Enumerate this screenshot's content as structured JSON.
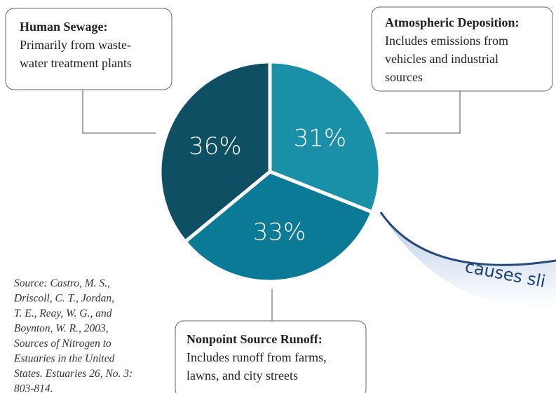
{
  "chart_data": {
    "type": "pie",
    "values": [
      31,
      33,
      36
    ],
    "value_labels": [
      "31%",
      "33%",
      "36%"
    ],
    "colors": [
      "#1a8fa8",
      "#0b7a96",
      "#0f4f64"
    ],
    "annotations": [
      {
        "title": "Atmospheric Deposition:",
        "lines": [
          "Includes emissions from",
          "vehicles and industrial",
          "sources"
        ]
      },
      {
        "title": "Nonpoint Source Runoff:",
        "lines": [
          "Includes runoff from farms,",
          "lawns, and city streets"
        ]
      },
      {
        "title": "Human Sewage:",
        "lines": [
          "Primarily from waste-",
          "water treatment plants"
        ]
      }
    ],
    "source": [
      "Source: Castro, M. S.,",
      "Driscoll, C. T., Jordan,",
      "T. E., Reay, W. G., and",
      "Boynton, W. R., 2003,",
      "Sources of Nitrogen to",
      "Estuaries in the United",
      "States. Estuaries 26, No. 3:",
      "803-814."
    ],
    "banner": "causes sli"
  }
}
